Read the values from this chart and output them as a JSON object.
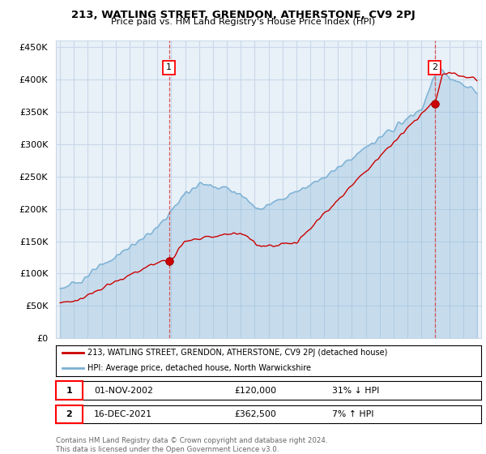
{
  "title": "213, WATLING STREET, GRENDON, ATHERSTONE, CV9 2PJ",
  "subtitle": "Price paid vs. HM Land Registry's House Price Index (HPI)",
  "ylim": [
    0,
    460000
  ],
  "yticks": [
    0,
    50000,
    100000,
    150000,
    200000,
    250000,
    300000,
    350000,
    400000,
    450000
  ],
  "marker1_date": "01-NOV-2002",
  "marker1_price": 120000,
  "marker1_hpi": "31% ↓ HPI",
  "marker1_label": "1",
  "marker2_date": "16-DEC-2021",
  "marker2_price": 362500,
  "marker2_hpi": "7% ↑ HPI",
  "marker2_label": "2",
  "legend_line1": "213, WATLING STREET, GRENDON, ATHERSTONE, CV9 2PJ (detached house)",
  "legend_line2": "HPI: Average price, detached house, North Warwickshire",
  "footnote": "Contains HM Land Registry data © Crown copyright and database right 2024.\nThis data is licensed under the Open Government Licence v3.0.",
  "line_color_red": "#cc0000",
  "line_color_blue": "#7ab0d4",
  "fill_color_blue": "#ddeeff",
  "marker_dashed_color": "#dd4444",
  "grid_color": "#c8d8e8",
  "background_color": "#ffffff",
  "plot_bg_color": "#e8f0f8"
}
